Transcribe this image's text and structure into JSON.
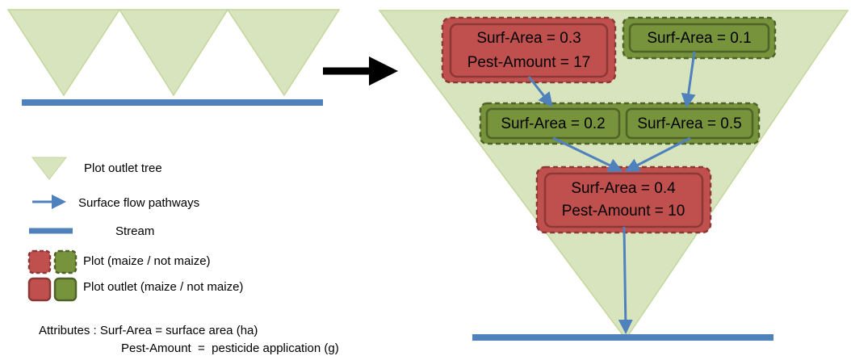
{
  "diagram": {
    "nodes": [
      {
        "lines": [
          "Surf-Area = 0.3",
          "Pest-Amount = 17"
        ]
      },
      {
        "lines": [
          "Surf-Area = 0.1"
        ]
      },
      {
        "lines": [
          "Surf-Area = 0.2"
        ]
      },
      {
        "lines": [
          "Surf-Area = 0.5"
        ]
      },
      {
        "lines": [
          "Surf-Area = 0.4",
          "Pest-Amount = 10"
        ]
      }
    ],
    "legend": [
      "Plot outlet tree",
      "Surface flow pathways",
      "Stream",
      "Plot (maize / not maize)",
      "Plot outlet (maize / not maize)"
    ],
    "attributes": [
      "Attributes : Surf-Area = surface area (ha)",
      "Pest-Amount  =  pesticide application (g)"
    ]
  }
}
